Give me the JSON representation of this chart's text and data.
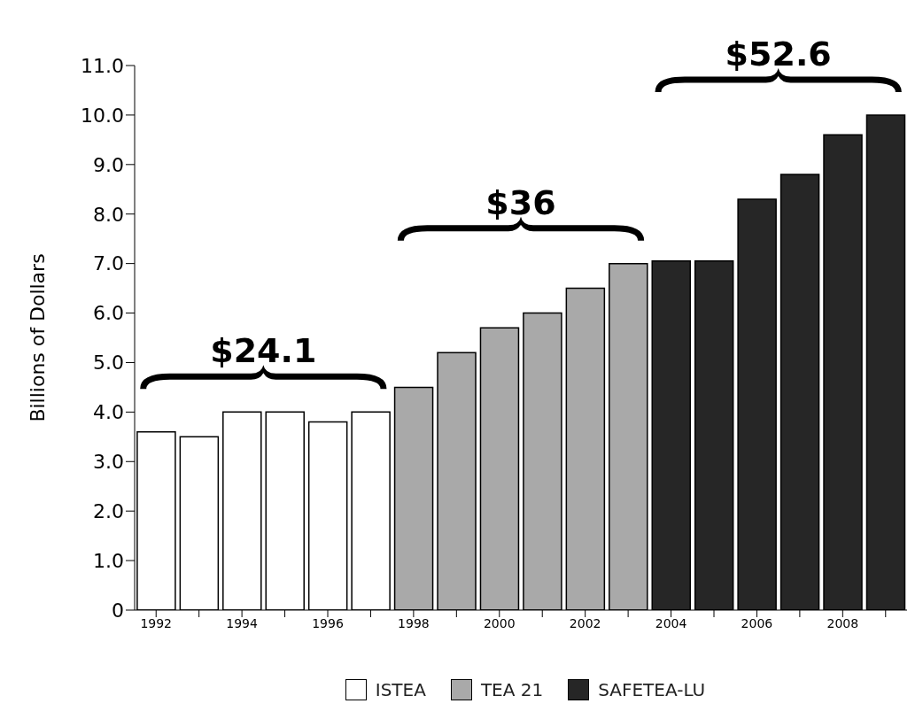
{
  "chart_data": {
    "type": "bar",
    "ylabel": "Billions of Dollars",
    "categories": [
      "1992",
      null,
      "1994",
      null,
      "1996",
      null,
      "1998",
      null,
      "2000",
      null,
      "2002",
      null,
      "2004",
      null,
      "2006",
      null,
      "2008",
      null
    ],
    "series": [
      {
        "name": "ISTEA",
        "color": "#ffffff",
        "values": [
          3.6,
          3.5,
          4.0,
          4.0,
          3.8,
          4.0,
          null,
          null,
          null,
          null,
          null,
          null,
          null,
          null,
          null,
          null,
          null,
          null
        ]
      },
      {
        "name": "TEA 21",
        "color": "#a9a9a9",
        "values": [
          null,
          null,
          null,
          null,
          null,
          null,
          4.5,
          5.2,
          5.7,
          6.0,
          6.5,
          7.0,
          null,
          null,
          null,
          null,
          null,
          null
        ]
      },
      {
        "name": "SAFETEA-LU",
        "color": "#262626",
        "values": [
          null,
          null,
          null,
          null,
          null,
          null,
          null,
          null,
          null,
          null,
          null,
          null,
          7.05,
          7.05,
          8.3,
          8.8,
          9.6,
          10.0
        ]
      }
    ],
    "stacked": true,
    "annotations": [
      "$24.1",
      "$36",
      "$52.6"
    ],
    "ylim": [
      0,
      11
    ],
    "yticks": [
      0,
      {
        "value": 1,
        "label": "1.0"
      },
      {
        "value": 2,
        "label": "2.0"
      },
      {
        "value": 3,
        "label": "3.0"
      },
      {
        "value": 4,
        "label": "4.0"
      },
      {
        "value": 5,
        "label": "5.0"
      },
      {
        "value": 6,
        "label": "6.0"
      },
      {
        "value": 7,
        "label": "7.0"
      },
      {
        "value": 8,
        "label": "8.0"
      },
      {
        "value": 9,
        "label": "9.0"
      },
      {
        "value": 10,
        "label": "10.0"
      },
      {
        "value": 11,
        "label": "11.0"
      }
    ],
    "grid": false,
    "legend": "bottom"
  }
}
